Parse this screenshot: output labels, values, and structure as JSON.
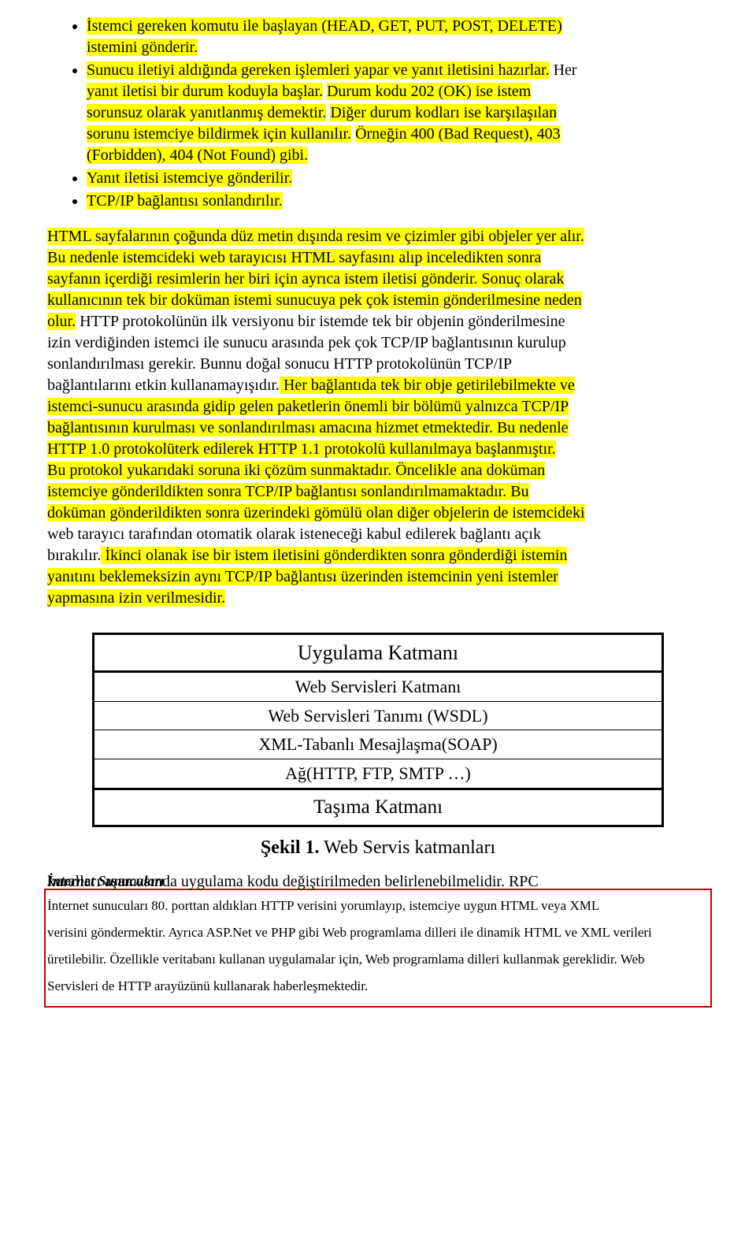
{
  "bullets": {
    "b1a": "İstemci gereken komutu ile başlayan (HEAD, GET, PUT, POST, DELETE)",
    "b1b": "istemini gönderir.",
    "b2a": "Sunucu iletiyi aldığında gereken işlemleri yapar ve yanıt iletisini hazırlar.",
    "b2b": "Her",
    "b2c": "yanıt iletisi bir durum koduyla başlar.",
    "b2d": "Durum kodu 202 (OK) ise istem",
    "b2e": "sorunsuz olarak yanıtlanmış demektir.",
    "b2f": "Diğer durum kodları ise karşılaşılan",
    "b2g": "sorunu istemciye bildirmek için kullanılır.",
    "b2h": "Örneğin 400 (Bad Request), 403",
    "b2i": "(Forbidden), 404 (Not Found) gibi.",
    "b3": "Yanıt iletisi istemciye gönderilir.",
    "b4": "TCP/IP bağlantısı sonlandırılır."
  },
  "para": {
    "p1": "HTML sayfalarının çoğunda düz metin dışında resim ve çizimler gibi objeler yer alır.",
    "p2": "Bu nedenle istemcideki web tarayıcısı HTML sayfasını alıp inceledikten sonra",
    "p3": "sayfanın içerdiği resimlerin her biri için ayrıca istem iletisi gönderir.",
    "p3b": " Sonuç olarak",
    "p4": "kullanıcının tek bir doküman istemi sunucuya pek çok istemin gönderilmesine neden",
    "p5": "olur.",
    "p5b": " HTTP protokolünün ilk versiyonu bir istemde tek bir objenin gönderilmesine",
    "p6": "izin verdiğinden istemci ile sunucu arasında pek çok TCP/IP bağlantısının kurulup",
    "p7": "sonlandırılması gerekir. Bunnu doğal sonucu HTTP protokolünün TCP/IP",
    "p8": "bağlantılarını etkin kullanamayışıdır.",
    "p8b": " Her bağlantıda tek bir obje getirilebilmekte ve",
    "p9": "istemci-sunucu arasında gidip gelen paketlerin önemli bir bölümü yalnızca TCP/IP",
    "p10": "bağlantısının kurulması ve sonlandırılması amacına hizmet etmektedir.",
    "p10b": " Bu nedenle",
    "p11": "HTTP 1.0 protokolüterk edilerek HTTP 1.1 protokolü kullanılmaya başlanmıştır.",
    "p12": "Bu protokol yukarıdaki soruna iki çözüm sunmaktadır.",
    "p12b": " Öncelikle ana doküman",
    "p13": "istemciye gönderildikten sonra TCP/IP bağlantısı sonlandırılmamaktadır.",
    "p13b": " Bu",
    "p14": "doküman gönderildikten sonra üzerindeki gömülü olan diğer objelerin de istemcideki",
    "p15": "web tarayıcı tarafından otomatik olarak isteneceği kabul edilerek bağlantı açık",
    "p16": "bırakılır.",
    "p16b": " İkinci olanak ise bir istem iletisini gönderdikten sonra gönderdiği istemin",
    "p17": "yanıtını beklemeksizin aynı TCP/IP bağlantısı üzerinden istemcinin yeni istemler",
    "p18": "yapmasına izin verilmesidir."
  },
  "table": {
    "r1": "Uygulama Katmanı",
    "r2": "Web Servisleri Katmanı",
    "r3": "Web Servisleri Tanımı (WSDL)",
    "r4": "XML-Tabanlı Mesajlaşma(SOAP)",
    "r5": "Ağ(HTTP, FTP, SMTP …)",
    "r6": "Taşıma Katmanı",
    "caption_bold": "Şekil 1.",
    "caption_rest": " Web Servis katmanları"
  },
  "footer": {
    "overlap_front": "kuralları aşamasında uygulama kodu değiştirilmeden belirlenebilmelidir. RPC",
    "overlap_back": "İnternet Sunucuları",
    "line2a": "İnternet sunucuları 80. porttan aldıkları HTTP verisini yorumlayıp, istemciye uygun HTML veya XML",
    "line3": "verisini göndermektir. Ayrıca ASP.Net ve PHP gibi Web programlama dilleri ile dinamik HTML ve XML verileri",
    "line4": "üretilebilir. Özellikle veritabanı kullanan uygulamalar için, Web programlama dilleri kullanmak gereklidir. Web",
    "line5": "Servisleri de HTTP arayüzünü kullanarak haberleşmektedir."
  },
  "colors": {
    "highlight": "#ffff00",
    "text": "#000000",
    "red": "#cc0000",
    "bg": "#ffffff"
  }
}
